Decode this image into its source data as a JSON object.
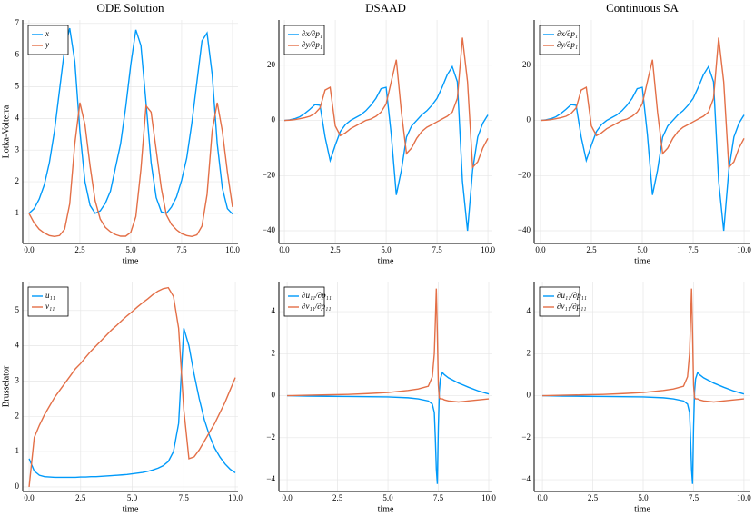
{
  "chart_data": [
    {
      "type": "line",
      "title": "ODE Solution",
      "ylabel": "Lotka-Volterra",
      "xlabel": "time",
      "grid": true,
      "legend": "top-left",
      "x": [
        0,
        0.25,
        0.5,
        0.75,
        1,
        1.25,
        1.5,
        1.75,
        2,
        2.25,
        2.5,
        2.75,
        3,
        3.25,
        3.5,
        3.75,
        4,
        4.25,
        4.5,
        4.75,
        5,
        5.25,
        5.5,
        5.75,
        6,
        6.25,
        6.5,
        6.75,
        7,
        7.25,
        7.5,
        7.75,
        8,
        8.25,
        8.5,
        8.75,
        9,
        9.25,
        9.5,
        9.75,
        10
      ],
      "series": [
        {
          "name": "x",
          "color": "#009afa",
          "values": [
            1.0,
            1.15,
            1.45,
            1.9,
            2.6,
            3.6,
            4.9,
            6.2,
            6.85,
            5.8,
            3.6,
            2.0,
            1.25,
            1.0,
            1.08,
            1.32,
            1.7,
            2.45,
            3.2,
            4.35,
            5.7,
            6.8,
            6.3,
            4.5,
            2.6,
            1.5,
            1.05,
            1.0,
            1.2,
            1.52,
            2.05,
            2.75,
            3.85,
            5.15,
            6.45,
            6.7,
            5.4,
            3.2,
            1.8,
            1.15,
            0.98
          ]
        },
        {
          "name": "y",
          "color": "#e36f47",
          "values": [
            1.0,
            0.7,
            0.5,
            0.38,
            0.3,
            0.27,
            0.3,
            0.5,
            1.3,
            3.2,
            4.5,
            3.8,
            2.5,
            1.4,
            0.82,
            0.56,
            0.42,
            0.33,
            0.28,
            0.28,
            0.4,
            0.9,
            2.4,
            4.4,
            4.2,
            3.0,
            1.8,
            0.95,
            0.65,
            0.48,
            0.36,
            0.3,
            0.27,
            0.32,
            0.6,
            1.6,
            3.6,
            4.5,
            3.6,
            2.3,
            1.2
          ]
        }
      ],
      "xlim": [
        -0.31,
        10.27
      ],
      "ylim": [
        0.05,
        7.11
      ],
      "xticks": [
        {
          "value": 0,
          "label": "0.0"
        },
        2.5,
        {
          "value": 5,
          "label": "5.0"
        },
        7.5,
        {
          "value": 10,
          "label": "10.0"
        }
      ],
      "yticks": [
        1,
        2,
        3,
        4,
        5,
        6,
        7
      ]
    },
    {
      "type": "line",
      "title": "DSAAD",
      "xlabel": "time",
      "grid": true,
      "legend": "top-left",
      "x": [
        0,
        0.25,
        0.5,
        0.75,
        1,
        1.25,
        1.5,
        1.75,
        2,
        2.25,
        2.5,
        2.75,
        3,
        3.25,
        3.5,
        3.75,
        4,
        4.25,
        4.5,
        4.75,
        5,
        5.25,
        5.5,
        5.75,
        6,
        6.25,
        6.5,
        6.75,
        7,
        7.25,
        7.5,
        7.75,
        8,
        8.25,
        8.5,
        8.75,
        9,
        9.25,
        9.5,
        9.75,
        10
      ],
      "series": [
        {
          "name": "∂x/∂p₁",
          "color": "#009afa",
          "values": [
            0,
            0.2,
            0.6,
            1.3,
            2.5,
            4,
            5.7,
            5.5,
            -6,
            -14.5,
            -9,
            -4,
            -1.5,
            0,
            1,
            2,
            3.5,
            5.5,
            8,
            11.5,
            12,
            -5,
            -27,
            -18,
            -6,
            -2,
            0,
            2,
            3.5,
            5.5,
            8,
            12,
            16.5,
            19.5,
            14,
            -22,
            -40,
            -18,
            -6,
            -1,
            2
          ]
        },
        {
          "name": "∂y/∂p₁",
          "color": "#e36f47",
          "values": [
            0,
            0.1,
            0.3,
            0.6,
            1,
            1.5,
            2.5,
            4.5,
            11,
            12,
            -2,
            -5.5,
            -4.5,
            -3,
            -2,
            -1,
            0,
            0.5,
            1.5,
            3,
            6,
            14,
            22,
            3,
            -12,
            -10,
            -6.5,
            -4,
            -2.5,
            -1.5,
            -0.5,
            0.5,
            1.5,
            3,
            8,
            30,
            14,
            -17,
            -15,
            -10,
            -6.5
          ]
        }
      ],
      "xlim": [
        -0.27,
        10.22
      ],
      "ylim": [
        -44.6,
        36.4
      ],
      "xticks": [
        {
          "value": 0,
          "label": "0.0"
        },
        2.5,
        {
          "value": 5,
          "label": "5.0"
        },
        7.5,
        {
          "value": 10,
          "label": "10.0"
        }
      ],
      "yticks": [
        {
          "value": -40,
          "label": "−40"
        },
        {
          "value": -20,
          "label": "−20"
        },
        0,
        20
      ]
    },
    {
      "type": "line",
      "title": "Continuous SA",
      "xlabel": "time",
      "grid": true,
      "legend": "top-left",
      "x": [
        0,
        0.25,
        0.5,
        0.75,
        1,
        1.25,
        1.5,
        1.75,
        2,
        2.25,
        2.5,
        2.75,
        3,
        3.25,
        3.5,
        3.75,
        4,
        4.25,
        4.5,
        4.75,
        5,
        5.25,
        5.5,
        5.75,
        6,
        6.25,
        6.5,
        6.75,
        7,
        7.25,
        7.5,
        7.75,
        8,
        8.25,
        8.5,
        8.75,
        9,
        9.25,
        9.5,
        9.75,
        10
      ],
      "series": [
        {
          "name": "∂x/∂p₁",
          "color": "#009afa",
          "values": [
            0,
            0.2,
            0.6,
            1.3,
            2.5,
            4,
            5.7,
            5.5,
            -6,
            -14.5,
            -9,
            -4,
            -1.5,
            0,
            1,
            2,
            3.5,
            5.5,
            8,
            11.5,
            12,
            -5,
            -27,
            -18,
            -6,
            -2,
            0,
            2,
            3.5,
            5.5,
            8,
            12,
            16.5,
            19.5,
            14,
            -22,
            -40,
            -18,
            -6,
            -1,
            2
          ]
        },
        {
          "name": "∂y/∂p₁",
          "color": "#e36f47",
          "values": [
            0,
            0.1,
            0.3,
            0.6,
            1,
            1.5,
            2.5,
            4.5,
            11,
            12,
            -2,
            -5.5,
            -4.5,
            -3,
            -2,
            -1,
            0,
            0.5,
            1.5,
            3,
            6,
            14,
            22,
            3,
            -12,
            -10,
            -6.5,
            -4,
            -2.5,
            -1.5,
            -0.5,
            0.5,
            1.5,
            3,
            8,
            30,
            14,
            -17,
            -15,
            -10,
            -6.5
          ]
        }
      ],
      "xlim": [
        -0.31,
        10.31
      ],
      "ylim": [
        -44.6,
        36.4
      ],
      "xticks": [
        {
          "value": 0,
          "label": "0.0"
        },
        2.5,
        {
          "value": 5,
          "label": "5.0"
        },
        7.5,
        {
          "value": 10,
          "label": "10.0"
        }
      ],
      "yticks": [
        {
          "value": -40,
          "label": "−40"
        },
        {
          "value": -20,
          "label": "−20"
        },
        0,
        20
      ]
    },
    {
      "type": "line",
      "ylabel": "Brusselator",
      "xlabel": "time",
      "grid": true,
      "legend": "top-left",
      "x": [
        0,
        0.25,
        0.5,
        0.75,
        1,
        1.25,
        1.5,
        1.75,
        2,
        2.25,
        2.5,
        2.75,
        3,
        3.25,
        3.5,
        3.75,
        4,
        4.25,
        4.5,
        4.75,
        5,
        5.25,
        5.5,
        5.75,
        6,
        6.25,
        6.5,
        6.75,
        7,
        7.25,
        7.5,
        7.75,
        8,
        8.25,
        8.5,
        8.75,
        9,
        9.25,
        9.5,
        9.75,
        10
      ],
      "series": [
        {
          "name": "u₁₁",
          "color": "#009afa",
          "values": [
            0.8,
            0.45,
            0.33,
            0.29,
            0.28,
            0.27,
            0.27,
            0.27,
            0.27,
            0.27,
            0.28,
            0.28,
            0.29,
            0.29,
            0.3,
            0.31,
            0.32,
            0.33,
            0.34,
            0.35,
            0.37,
            0.39,
            0.41,
            0.44,
            0.48,
            0.53,
            0.6,
            0.72,
            1.0,
            1.8,
            4.5,
            4.0,
            3.2,
            2.5,
            1.9,
            1.45,
            1.1,
            0.85,
            0.65,
            0.5,
            0.4
          ]
        },
        {
          "name": "v₁₁",
          "color": "#e36f47",
          "values": [
            0.0,
            1.4,
            1.75,
            2.05,
            2.3,
            2.55,
            2.75,
            2.95,
            3.15,
            3.35,
            3.5,
            3.68,
            3.85,
            4.0,
            4.15,
            4.3,
            4.45,
            4.58,
            4.72,
            4.85,
            4.97,
            5.1,
            5.22,
            5.33,
            5.45,
            5.55,
            5.62,
            5.65,
            5.4,
            4.5,
            2.2,
            0.8,
            0.85,
            1.05,
            1.3,
            1.55,
            1.8,
            2.1,
            2.4,
            2.75,
            3.1
          ]
        }
      ],
      "xlim": [
        -0.31,
        10.13
      ],
      "ylim": [
        -0.13,
        5.82
      ],
      "xticks": [
        {
          "value": 0,
          "label": "0.0"
        },
        2.5,
        {
          "value": 5,
          "label": "5.0"
        },
        7.5,
        {
          "value": 10,
          "label": "10.0"
        }
      ],
      "yticks": [
        0,
        1,
        2,
        3,
        4,
        5
      ]
    },
    {
      "type": "line",
      "xlabel": "time",
      "grid": true,
      "legend": "top-left",
      "x": [
        0,
        1,
        2,
        3,
        4,
        5,
        6,
        6.5,
        7,
        7.2,
        7.3,
        7.35,
        7.4,
        7.45,
        7.5,
        7.55,
        7.6,
        7.7,
        7.8,
        8,
        8.5,
        9,
        9.5,
        10
      ],
      "series": [
        {
          "name": "∂u₁₁/∂p₁₁",
          "color": "#009afa",
          "values": [
            0,
            -0.02,
            -0.03,
            -0.04,
            -0.05,
            -0.06,
            -0.1,
            -0.15,
            -0.25,
            -0.4,
            -0.8,
            -2,
            -3.5,
            -4.2,
            -1.5,
            0.2,
            0.8,
            1.1,
            1.0,
            0.85,
            0.6,
            0.4,
            0.22,
            0.08
          ]
        },
        {
          "name": "∂v₁₁/∂p₁₁",
          "color": "#e36f47",
          "values": [
            0,
            0.02,
            0.04,
            0.06,
            0.1,
            0.15,
            0.25,
            0.32,
            0.45,
            0.9,
            2,
            3.5,
            5.1,
            3,
            0.5,
            -0.1,
            -0.15,
            -0.15,
            -0.2,
            -0.25,
            -0.3,
            -0.25,
            -0.2,
            -0.15
          ]
        }
      ],
      "xlim": [
        -0.41,
        10.18
      ],
      "ylim": [
        -4.56,
        5.43
      ],
      "xticks": [
        {
          "value": 0,
          "label": "0.0"
        },
        2.5,
        {
          "value": 5,
          "label": "5.0"
        },
        7.5,
        {
          "value": 10,
          "label": "10.0"
        }
      ],
      "yticks": [
        {
          "value": -4,
          "label": "−4"
        },
        {
          "value": -2,
          "label": "−2"
        },
        0,
        2,
        4
      ]
    },
    {
      "type": "line",
      "xlabel": "time",
      "grid": true,
      "legend": "top-left",
      "x": [
        0,
        1,
        2,
        3,
        4,
        5,
        6,
        6.5,
        7,
        7.2,
        7.3,
        7.35,
        7.4,
        7.45,
        7.5,
        7.55,
        7.6,
        7.7,
        7.8,
        8,
        8.5,
        9,
        9.5,
        10
      ],
      "series": [
        {
          "name": "∂u₁₁/∂p₁₁",
          "color": "#009afa",
          "values": [
            0,
            -0.02,
            -0.03,
            -0.04,
            -0.05,
            -0.06,
            -0.1,
            -0.15,
            -0.25,
            -0.4,
            -0.8,
            -2,
            -3.5,
            -4.2,
            -1.5,
            0.2,
            0.8,
            1.1,
            1.0,
            0.85,
            0.6,
            0.4,
            0.22,
            0.08
          ]
        },
        {
          "name": "∂v₁₁/∂p₁₁",
          "color": "#e36f47",
          "values": [
            0,
            0.02,
            0.04,
            0.06,
            0.1,
            0.15,
            0.25,
            0.32,
            0.45,
            0.9,
            2,
            3.5,
            5.1,
            3,
            0.5,
            -0.1,
            -0.15,
            -0.15,
            -0.2,
            -0.25,
            -0.3,
            -0.25,
            -0.2,
            -0.15
          ]
        }
      ],
      "xlim": [
        -0.41,
        10.32
      ],
      "ylim": [
        -4.56,
        5.43
      ],
      "xticks": [
        {
          "value": 0,
          "label": "0.0"
        },
        2.5,
        {
          "value": 5,
          "label": "5.0"
        },
        7.5,
        {
          "value": 10,
          "label": "10.0"
        }
      ],
      "yticks": [
        {
          "value": -4,
          "label": "−4"
        },
        {
          "value": -2,
          "label": "−2"
        },
        0,
        2,
        4
      ]
    }
  ]
}
